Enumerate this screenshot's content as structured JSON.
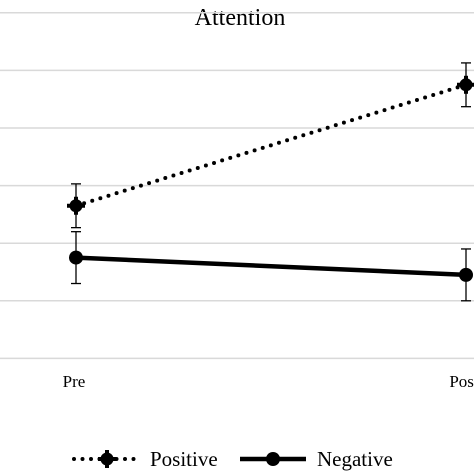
{
  "chart_data": {
    "type": "line",
    "title": "Attention",
    "categories": [
      "Pre",
      "Post"
    ],
    "series": [
      {
        "name": "Positive",
        "values": [
          3.65,
          5.75
        ],
        "error": [
          0.38,
          0.38
        ],
        "style": "dotted",
        "marker": "circle-cross",
        "color": "#000000"
      },
      {
        "name": "Negative",
        "values": [
          2.75,
          2.45
        ],
        "error": [
          0.45,
          0.45
        ],
        "style": "solid",
        "marker": "circle",
        "color": "#000000"
      }
    ],
    "ylim": [
      0,
      7
    ],
    "gridlines": [
      1,
      2,
      3,
      4,
      5,
      6,
      7
    ],
    "grid": true,
    "legend": "bottom",
    "xlabel": "",
    "ylabel": ""
  }
}
